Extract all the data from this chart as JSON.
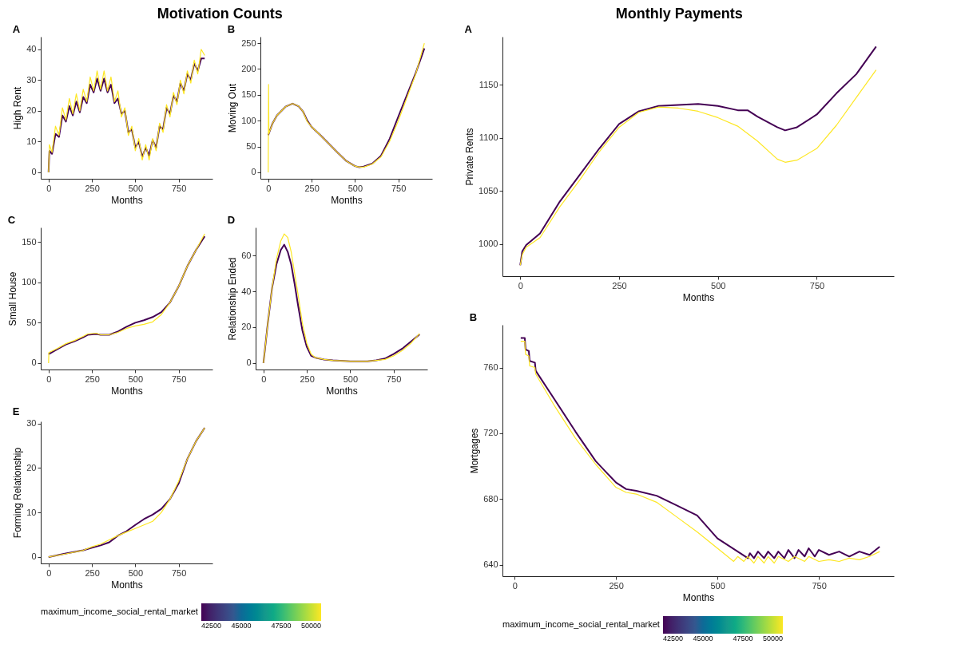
{
  "chart_data": [
    {
      "type": "line",
      "title": "A",
      "annotations": [
        "Motivation Counts"
      ],
      "xlabel": "Months",
      "ylabel": "High Rent",
      "xlim": [
        -45,
        945
      ],
      "xticks": [
        0,
        250,
        500,
        750
      ],
      "ylim": [
        -2.1,
        44.1
      ],
      "yticks": [
        0,
        10,
        20,
        30,
        40
      ],
      "series": [
        {
          "color": "#440154",
          "x": [
            0,
            5,
            20,
            40,
            60,
            80,
            100,
            120,
            140,
            160,
            180,
            200,
            220,
            240,
            260,
            280,
            300,
            320,
            340,
            360,
            380,
            400,
            420,
            440,
            460,
            480,
            500,
            520,
            540,
            560,
            580,
            600,
            620,
            640,
            660,
            680,
            700,
            720,
            740,
            760,
            780,
            800,
            820,
            840,
            860,
            880,
            900
          ],
          "values": [
            0,
            7,
            6,
            12.5,
            11.5,
            18.5,
            16.5,
            21.5,
            18.5,
            23,
            19.5,
            24.5,
            22.5,
            28.5,
            26,
            30.5,
            26.5,
            30.5,
            26,
            28.5,
            22.5,
            24,
            19,
            20,
            13,
            14,
            8,
            10,
            5,
            8,
            5.5,
            10.5,
            8,
            15,
            14,
            21,
            19,
            25,
            23,
            29,
            26.5,
            32,
            30,
            35.5,
            33,
            37,
            37
          ]
        },
        {
          "color": "#fde725",
          "x": [
            0,
            5,
            20,
            40,
            60,
            80,
            100,
            120,
            140,
            160,
            180,
            200,
            220,
            240,
            260,
            280,
            300,
            320,
            340,
            360,
            380,
            400,
            420,
            440,
            460,
            480,
            500,
            520,
            540,
            560,
            580,
            600,
            620,
            640,
            660,
            680,
            700,
            720,
            740,
            760,
            780,
            800,
            820,
            840,
            860,
            880,
            900
          ],
          "values": [
            0,
            9,
            6.5,
            15,
            12,
            21,
            17,
            24,
            19,
            25.5,
            20,
            27,
            23,
            31,
            26.5,
            33,
            27,
            33,
            26.5,
            31,
            23,
            26.5,
            18,
            21,
            12,
            15,
            7,
            11,
            4,
            9,
            4,
            11,
            7,
            16,
            13,
            22,
            18,
            26,
            22,
            30,
            25.5,
            33,
            29,
            36.5,
            32,
            40,
            38
          ]
        }
      ]
    },
    {
      "type": "line",
      "title": "B",
      "xlabel": "Months",
      "ylabel": "Moving Out",
      "xlim": [
        -45,
        945
      ],
      "xticks": [
        0,
        250,
        500,
        750
      ],
      "ylim": [
        -12.5,
        262.5
      ],
      "yticks": [
        0,
        50,
        100,
        150,
        200,
        250
      ],
      "series": [
        {
          "color": "#440154",
          "x": [
            0,
            25,
            50,
            100,
            140,
            175,
            200,
            225,
            250,
            300,
            350,
            400,
            450,
            500,
            525,
            550,
            600,
            650,
            700,
            750,
            800,
            850,
            900
          ],
          "values": [
            72,
            95,
            110,
            127,
            133,
            128,
            118,
            100,
            88,
            72,
            55,
            38,
            22,
            12,
            10,
            11,
            17,
            32,
            65,
            108,
            150,
            192,
            240
          ]
        },
        {
          "color": "#fde725",
          "x": [
            0,
            2,
            4,
            25,
            50,
            100,
            140,
            175,
            200,
            225,
            250,
            300,
            350,
            400,
            450,
            500,
            525,
            550,
            600,
            650,
            700,
            750,
            800,
            850,
            900
          ],
          "values": [
            0,
            170,
            75,
            95,
            110,
            127,
            133,
            128,
            118,
            98,
            88,
            72,
            55,
            38,
            22,
            12,
            10,
            10,
            16,
            30,
            60,
            100,
            145,
            190,
            250
          ]
        }
      ]
    },
    {
      "type": "line",
      "title": "C",
      "xlabel": "Months",
      "ylabel": "Small House",
      "xlim": [
        -45,
        945
      ],
      "xticks": [
        0,
        250,
        500,
        750
      ],
      "ylim": [
        -8,
        168
      ],
      "yticks": [
        0,
        50,
        100,
        150
      ],
      "series": [
        {
          "color": "#440154",
          "x": [
            0,
            50,
            100,
            150,
            200,
            225,
            275,
            300,
            325,
            350,
            400,
            450,
            500,
            550,
            600,
            650,
            700,
            750,
            800,
            850,
            900
          ],
          "values": [
            11,
            17,
            23,
            27,
            32,
            35,
            36,
            35,
            35,
            35,
            39,
            45,
            50,
            53,
            57,
            63,
            75,
            95,
            120,
            140,
            157
          ]
        },
        {
          "color": "#fde725",
          "x": [
            0,
            2,
            50,
            100,
            150,
            200,
            225,
            275,
            300,
            350,
            400,
            450,
            500,
            550,
            600,
            650,
            700,
            750,
            800,
            850,
            900
          ],
          "values": [
            0,
            13,
            18,
            24,
            28,
            33,
            36,
            37,
            35,
            35,
            38,
            43,
            46,
            48,
            51,
            60,
            75,
            95,
            120,
            140,
            160
          ]
        }
      ]
    },
    {
      "type": "line",
      "title": "D",
      "xlabel": "Months",
      "ylabel": "Relationship Ended",
      "xlim": [
        -45,
        945
      ],
      "xticks": [
        0,
        250,
        500,
        750
      ],
      "ylim": [
        -3.6,
        75.6
      ],
      "yticks": [
        0,
        20,
        40,
        60
      ],
      "series": [
        {
          "color": "#440154",
          "x": [
            0,
            25,
            50,
            75,
            100,
            120,
            140,
            160,
            180,
            200,
            225,
            250,
            275,
            300,
            350,
            400,
            500,
            600,
            650,
            700,
            750,
            800,
            850,
            900
          ],
          "values": [
            0,
            22,
            42,
            55,
            63,
            66,
            62,
            55,
            44,
            32,
            18,
            9,
            4,
            3,
            2,
            1.5,
            1,
            1,
            1.5,
            2.5,
            5,
            8,
            12,
            16
          ]
        },
        {
          "color": "#fde725",
          "x": [
            0,
            25,
            50,
            75,
            100,
            120,
            140,
            160,
            180,
            200,
            225,
            250,
            275,
            300,
            350,
            400,
            500,
            600,
            650,
            700,
            750,
            800,
            850,
            900
          ],
          "values": [
            0,
            22,
            42,
            58,
            68,
            72,
            70,
            62,
            50,
            38,
            22,
            11,
            5,
            3,
            2,
            1.5,
            1,
            1,
            1.5,
            2,
            4,
            7,
            11,
            16.5
          ]
        }
      ]
    },
    {
      "type": "line",
      "title": "E",
      "xlabel": "Months",
      "ylabel": "Forming Relationship",
      "xlim": [
        -45,
        945
      ],
      "xticks": [
        0,
        250,
        500,
        750
      ],
      "ylim": [
        -1.45,
        30.45
      ],
      "yticks": [
        0,
        10,
        20,
        30
      ],
      "clabel": "maximum_income_social_rental_market",
      "clim": [
        42500,
        50000
      ],
      "cticks": [
        42500,
        45000,
        47500,
        50000
      ],
      "series": [
        {
          "color": "#440154",
          "x": [
            0,
            100,
            200,
            250,
            300,
            350,
            400,
            450,
            500,
            550,
            600,
            650,
            700,
            750,
            800,
            850,
            900
          ],
          "values": [
            0,
            0.8,
            1.5,
            2.1,
            2.6,
            3.3,
            4.8,
            5.8,
            7.2,
            8.5,
            9.5,
            10.8,
            13,
            16.5,
            22,
            26,
            29
          ]
        },
        {
          "color": "#fde725",
          "x": [
            0,
            100,
            200,
            250,
            300,
            400,
            450,
            500,
            550,
            600,
            650,
            700,
            750,
            800,
            850,
            900
          ],
          "values": [
            0,
            0.7,
            1.5,
            2.3,
            2.9,
            4.8,
            5.6,
            6.4,
            7.2,
            8,
            10,
            13,
            17,
            22,
            26,
            29
          ]
        }
      ]
    },
    {
      "type": "line",
      "title": "A",
      "annotations": [
        "Monthly Payments"
      ],
      "xlabel": "Months",
      "ylabel": "Private Rents",
      "xlim": [
        -45,
        945
      ],
      "xticks": [
        0,
        250,
        500,
        750
      ],
      "ylim": [
        969.75,
        1195.25
      ],
      "yticks": [
        1000,
        1050,
        1100,
        1150
      ],
      "series": [
        {
          "color": "#440154",
          "x": [
            0,
            5,
            15,
            50,
            100,
            150,
            200,
            250,
            300,
            350,
            400,
            450,
            500,
            550,
            575,
            600,
            650,
            670,
            700,
            750,
            800,
            850,
            900
          ],
          "values": [
            980,
            993,
            999,
            1010,
            1040,
            1065,
            1090,
            1113,
            1125,
            1130,
            1131,
            1132,
            1130,
            1126,
            1126,
            1120,
            1110,
            1107,
            1110,
            1122,
            1142,
            1160,
            1186
          ]
        },
        {
          "color": "#fde725",
          "x": [
            0,
            5,
            15,
            50,
            100,
            150,
            200,
            250,
            300,
            350,
            400,
            450,
            500,
            550,
            600,
            650,
            670,
            700,
            750,
            800,
            850,
            900
          ],
          "values": [
            980,
            990,
            997,
            1006,
            1035,
            1060,
            1087,
            1110,
            1124,
            1129,
            1128,
            1125,
            1119,
            1111,
            1097,
            1080,
            1077,
            1079,
            1090,
            1112,
            1138,
            1164
          ]
        }
      ]
    },
    {
      "type": "line",
      "title": "B",
      "xlabel": "Months",
      "ylabel": "Mortgages",
      "xlim": [
        -30,
        935
      ],
      "xticks": [
        0,
        250,
        500,
        750
      ],
      "ylim": [
        633,
        786
      ],
      "yticks": [
        640,
        680,
        720,
        760
      ],
      "clabel": "maximum_income_social_rental_market",
      "clim": [
        42500,
        50000
      ],
      "cticks": [
        42500,
        45000,
        47500,
        50000
      ],
      "series": [
        {
          "color": "#440154",
          "x": [
            15,
            25,
            27,
            35,
            37,
            50,
            52,
            100,
            150,
            200,
            250,
            275,
            300,
            350,
            400,
            450,
            500,
            550,
            575,
            580,
            590,
            600,
            615,
            625,
            640,
            650,
            665,
            675,
            690,
            700,
            715,
            725,
            740,
            750,
            775,
            800,
            825,
            850,
            875,
            900
          ],
          "values": [
            778,
            778,
            771,
            770,
            764,
            763,
            758,
            740,
            721,
            703,
            690,
            686,
            685,
            682,
            676,
            670,
            656,
            648,
            644,
            647,
            644,
            648,
            644,
            648,
            644,
            648,
            644,
            649,
            644,
            649,
            645,
            650,
            645,
            649,
            646,
            648,
            645,
            648,
            646,
            651
          ]
        },
        {
          "color": "#fde725",
          "x": [
            15,
            25,
            27,
            35,
            37,
            50,
            52,
            100,
            150,
            200,
            250,
            275,
            300,
            350,
            400,
            450,
            500,
            525,
            540,
            550,
            565,
            575,
            590,
            600,
            615,
            625,
            640,
            650,
            675,
            690,
            715,
            725,
            750,
            775,
            800,
            825,
            850,
            875,
            900
          ],
          "values": [
            776,
            776,
            768,
            767,
            761,
            760,
            756,
            736,
            717,
            701,
            687,
            684,
            683,
            678,
            669,
            660,
            650,
            645,
            642,
            645,
            642,
            645,
            641,
            645,
            641,
            645,
            641,
            645,
            642,
            645,
            642,
            645,
            642,
            643,
            642,
            644,
            643,
            645,
            648
          ]
        }
      ]
    }
  ]
}
